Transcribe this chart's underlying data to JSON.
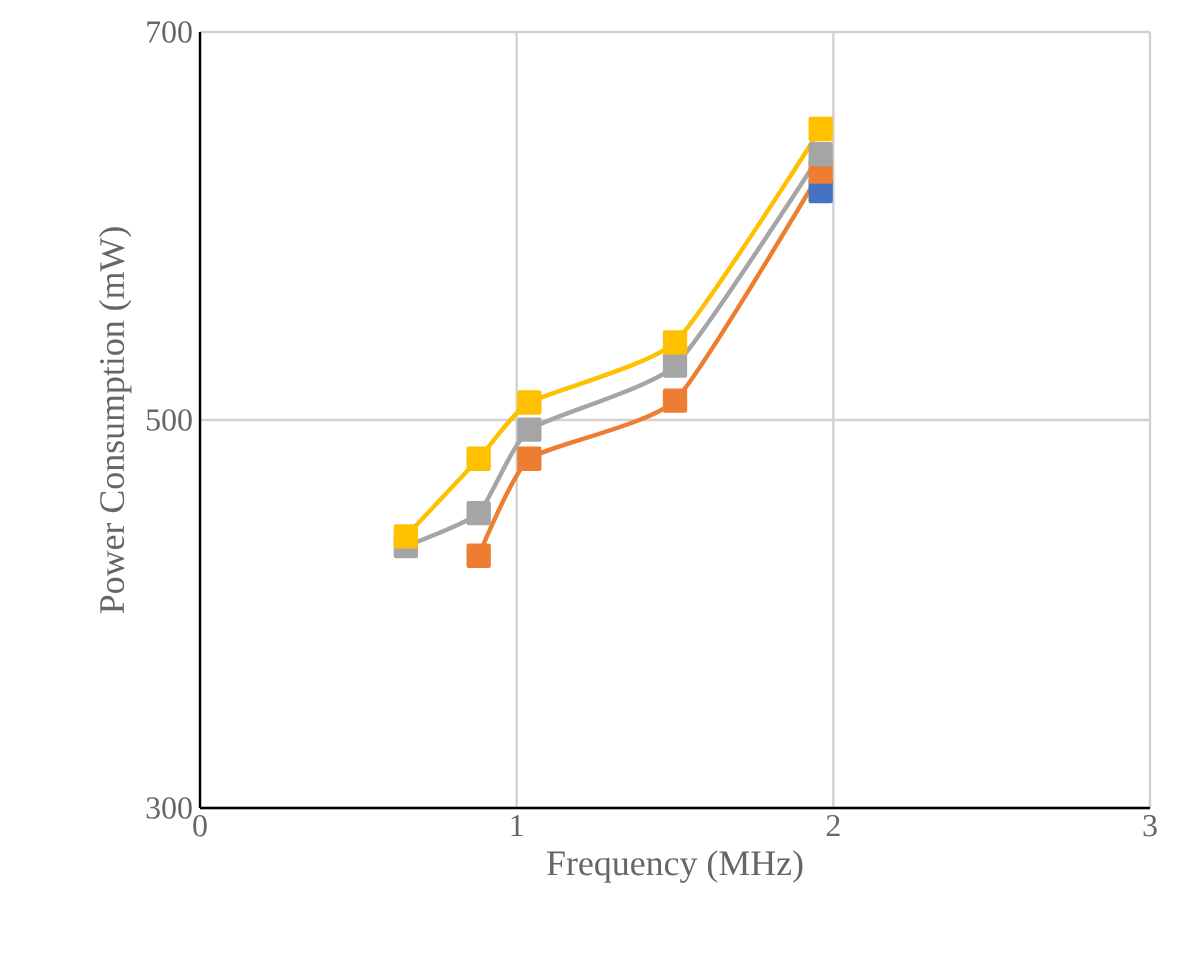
{
  "chart_data": {
    "type": "line",
    "xlabel": "Frequency (MHz)",
    "ylabel": "Power Consumption (mW)",
    "xlim": [
      0,
      3
    ],
    "ylim": [
      300,
      700
    ],
    "xticks": [
      0,
      1,
      2,
      3
    ],
    "yticks": [
      300,
      500,
      700
    ],
    "grid": true,
    "marker": "square",
    "line_style": "solid",
    "series": [
      {
        "color": "#4472c4",
        "x": [
          1.96
        ],
        "values": [
          618
        ]
      },
      {
        "color": "#ed7d31",
        "x": [
          0.88,
          1.04,
          1.5,
          1.96
        ],
        "values": [
          430,
          480,
          510,
          628
        ]
      },
      {
        "color": "#a5a5a5",
        "x": [
          0.65,
          0.88,
          1.04,
          1.5,
          1.96
        ],
        "values": [
          435,
          452,
          495,
          528,
          637
        ]
      },
      {
        "color": "#ffc000",
        "x": [
          0.65,
          0.88,
          1.04,
          1.5,
          1.96
        ],
        "values": [
          440,
          480,
          509,
          540,
          650
        ]
      }
    ]
  }
}
